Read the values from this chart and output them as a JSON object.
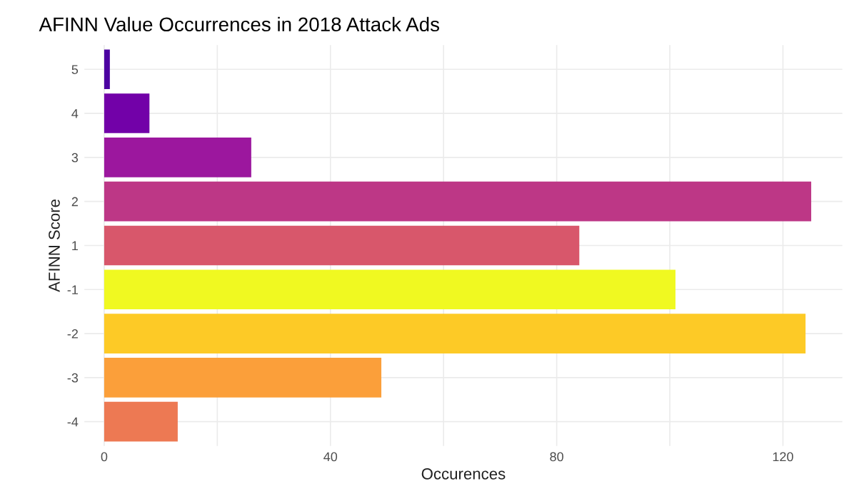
{
  "chart_data": {
    "type": "bar",
    "orientation": "horizontal",
    "title": "AFINN Value Occurrences in 2018 Attack Ads",
    "xlabel": "Occurences",
    "ylabel": "AFINN Score",
    "categories": [
      "5",
      "4",
      "3",
      "2",
      "1",
      "-1",
      "-2",
      "-3",
      "-4"
    ],
    "values": [
      1,
      8,
      26,
      125,
      84,
      101,
      124,
      49,
      13
    ],
    "colors": [
      "#4c02a1",
      "#7201a8",
      "#9c179e",
      "#bd3786",
      "#d8576b",
      "#f0f921",
      "#fdca26",
      "#fb9f3a",
      "#ed7953"
    ],
    "xlim": [
      -3.5,
      130.5
    ],
    "xticks": [
      0,
      {
        "value": 20,
        "label": null
      },
      40,
      {
        "value": 60,
        "label": null
      },
      80,
      {
        "value": 100,
        "label": null
      },
      120
    ],
    "grid": true
  }
}
